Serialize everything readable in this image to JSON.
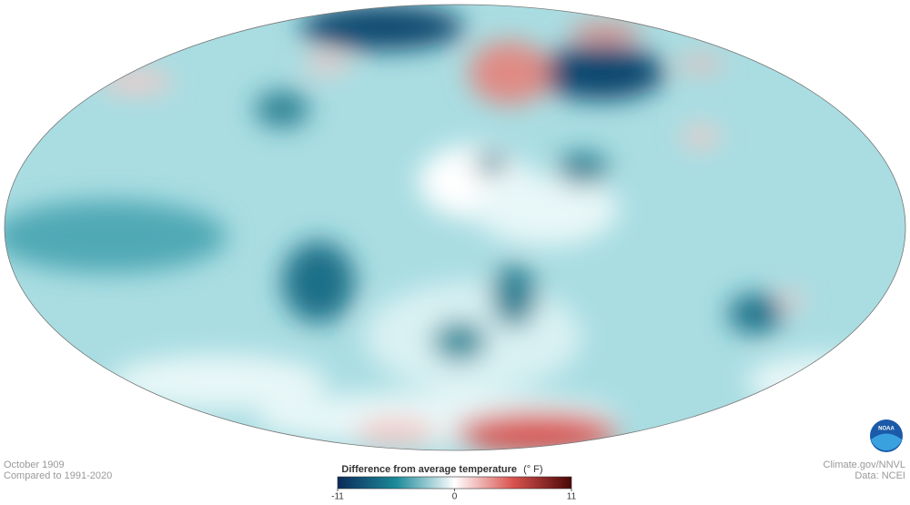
{
  "map": {
    "date": "October 1909",
    "baseline": "Compared to 1991-2020",
    "credit": "Climate.gov/NNVL",
    "source": "Data: NCEI",
    "logo": "NOAA",
    "legend": {
      "title": "Difference from average temperature",
      "unit": "(° F)",
      "range": [
        -11,
        11
      ],
      "ticks": [
        -11,
        0,
        11
      ]
    }
  }
}
